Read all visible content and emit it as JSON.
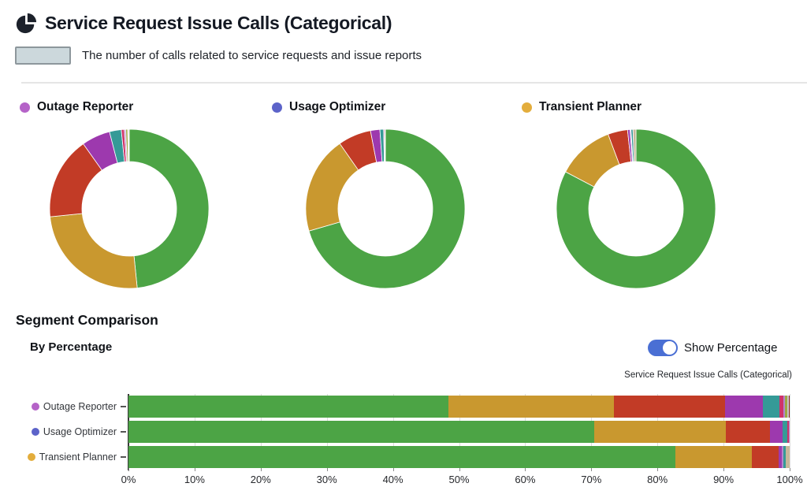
{
  "header": {
    "icon": "pie-chart-icon",
    "title": "Service Request Issue Calls (Categorical)",
    "subtitle": "The number of calls related to service requests and issue reports"
  },
  "segment_comparison": {
    "heading": "Segment Comparison",
    "subheading": "By Percentage",
    "toggle_label": "Show Percentage",
    "toggle_on": true,
    "chart_caption": "Service Request Issue Calls (Categorical)"
  },
  "palette": {
    "green": "#4CA445",
    "gold": "#C9982F",
    "red": "#C23B26",
    "purple": "#9D39AE",
    "teal": "#359A97",
    "crimson": "#CF3369",
    "violet": "#B286CE",
    "olive": "#9EA844",
    "gray": "#C9C9C9",
    "darkred": "#8E1F1F",
    "tan": "#C8B89A",
    "toggle_blue": "#4A6FD4"
  },
  "chart_data": [
    {
      "type": "pie",
      "variant": "donut",
      "title": "Outage Reporter",
      "dot_color": "#B563C8",
      "values_percent": [
        48.4,
        25.0,
        16.8,
        5.8,
        2.4,
        0.6,
        0.3,
        0.4,
        0.15,
        0.15
      ],
      "colors": [
        "#4CA445",
        "#C9982F",
        "#C23B26",
        "#9D39AE",
        "#359A97",
        "#CF3369",
        "#B286CE",
        "#9EA844",
        "#C9C9C9",
        "#8E1F1F"
      ]
    },
    {
      "type": "pie",
      "variant": "donut",
      "title": "Usage Optimizer",
      "dot_color": "#5C63C9",
      "values_percent": [
        70.5,
        19.8,
        6.7,
        1.9,
        0.75,
        0.2,
        0.15
      ],
      "colors": [
        "#4CA445",
        "#C9982F",
        "#C23B26",
        "#9D39AE",
        "#359A97",
        "#CF3369",
        "#B286CE"
      ]
    },
    {
      "type": "pie",
      "variant": "donut",
      "title": "Transient Planner",
      "dot_color": "#E3AD3C",
      "values_percent": [
        82.7,
        11.6,
        4.0,
        0.5,
        0.2,
        0.4,
        0.6
      ],
      "colors": [
        "#4CA445",
        "#C9982F",
        "#C23B26",
        "#9D39AE",
        "#B286CE",
        "#359A97",
        "#C8B89A"
      ]
    },
    {
      "type": "bar",
      "orientation": "horizontal",
      "stacked": true,
      "grid": true,
      "title": "Service Request Issue Calls (Categorical)",
      "categories": [
        "Outage Reporter",
        "Usage Optimizer",
        "Transient Planner"
      ],
      "category_dot_colors": [
        "#B563C8",
        "#5C63C9",
        "#E3AD3C"
      ],
      "x_ticks": [
        "0%",
        "10%",
        "20%",
        "30%",
        "40%",
        "50%",
        "60%",
        "70%",
        "80%",
        "90%",
        "100%"
      ],
      "xlim": [
        0,
        100
      ],
      "rows": [
        {
          "category": "Outage Reporter",
          "segments_percent": [
            48.4,
            25.0,
            16.8,
            5.8,
            2.4,
            0.6,
            0.3,
            0.4,
            0.15,
            0.15
          ],
          "colors": [
            "#4CA445",
            "#C9982F",
            "#C23B26",
            "#9D39AE",
            "#359A97",
            "#CF3369",
            "#B286CE",
            "#9EA844",
            "#C9C9C9",
            "#8E1F1F"
          ]
        },
        {
          "category": "Usage Optimizer",
          "segments_percent": [
            70.5,
            19.8,
            6.7,
            1.9,
            0.75,
            0.2,
            0.15
          ],
          "colors": [
            "#4CA445",
            "#C9982F",
            "#C23B26",
            "#9D39AE",
            "#359A97",
            "#CF3369",
            "#B286CE"
          ]
        },
        {
          "category": "Transient Planner",
          "segments_percent": [
            82.7,
            11.6,
            4.0,
            0.5,
            0.2,
            0.4,
            0.6
          ],
          "colors": [
            "#4CA445",
            "#C9982F",
            "#C23B26",
            "#9D39AE",
            "#B286CE",
            "#359A97",
            "#C8B89A"
          ]
        }
      ]
    }
  ]
}
